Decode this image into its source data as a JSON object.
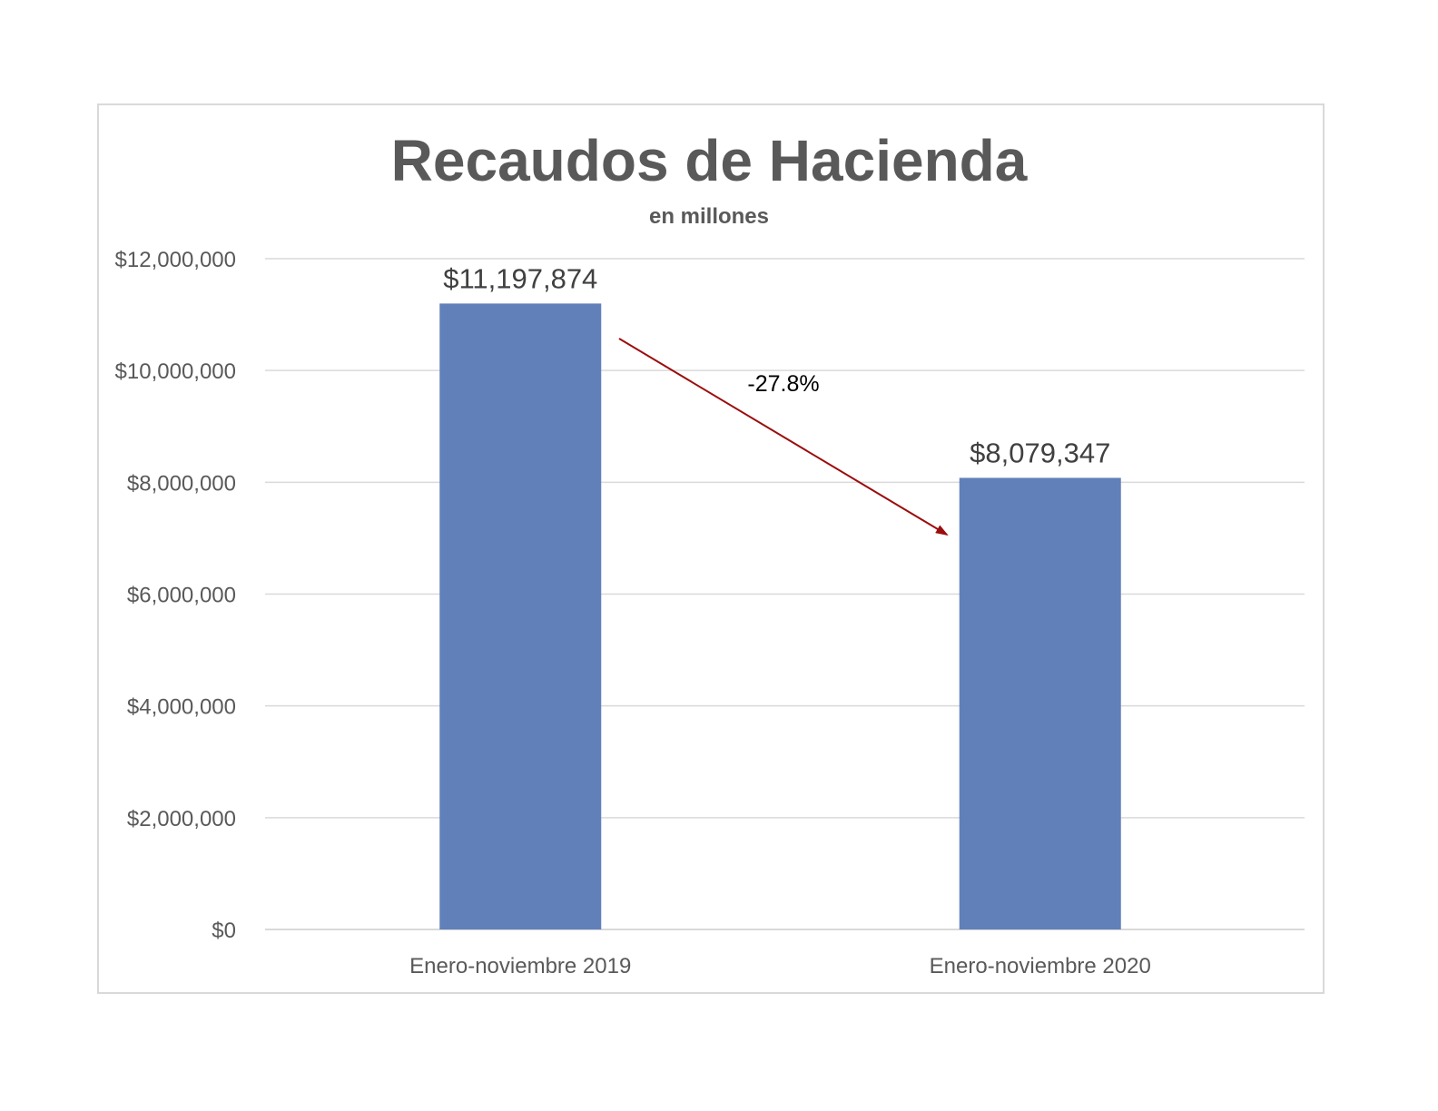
{
  "chart_data": {
    "type": "bar",
    "title": "Recaudos de Hacienda",
    "subtitle": "en millones",
    "xlabel": "",
    "ylabel": "",
    "categories": [
      "Enero-noviembre 2019",
      "Enero-noviembre 2020"
    ],
    "values": [
      11197874,
      8079347
    ],
    "data_labels": [
      "$11,197,874",
      "$8,079,347"
    ],
    "ylim": [
      0,
      12000000
    ],
    "y_ticks": [
      0,
      2000000,
      4000000,
      6000000,
      8000000,
      10000000,
      12000000
    ],
    "y_tick_labels": [
      "$0",
      "$2,000,000",
      "$4,000,000",
      "$6,000,000",
      "$8,000,000",
      "$10,000,000",
      "$12,000,000"
    ],
    "grid": true,
    "legend": "none",
    "annotation": {
      "text": "-27.8%",
      "arrow_from_category": "Enero-noviembre 2019",
      "arrow_to_category": "Enero-noviembre 2020",
      "arrow_color": "#9b0d0d"
    },
    "colors": {
      "bar": "#6180b9",
      "grid": "#d9d9d9",
      "axis_text": "#595959",
      "title": "#595959"
    }
  }
}
